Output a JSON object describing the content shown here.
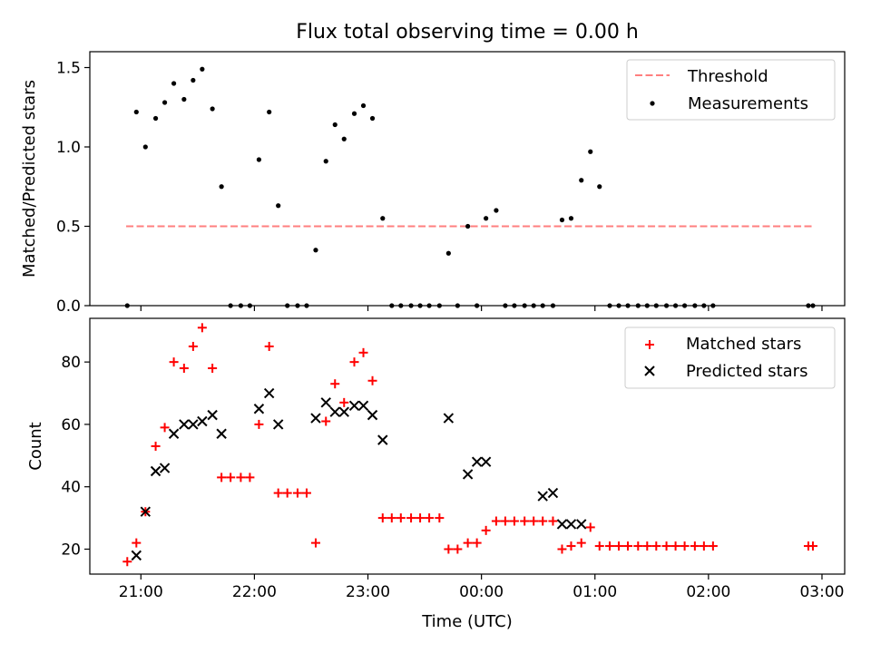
{
  "chart_data": [
    {
      "type": "scatter",
      "title": "Flux total observing time = 0.00 h",
      "xlabel": "",
      "ylabel": "Matched/Predicted stars",
      "xlim": [
        20.55,
        27.2
      ],
      "ylim": [
        0,
        1.6
      ],
      "yticks": [
        0.0,
        0.5,
        1.0,
        1.5
      ],
      "ytick_labels": [
        "0.0",
        "0.5",
        "1.0",
        "1.5"
      ],
      "xticks": [
        21,
        22,
        23,
        24,
        25,
        26,
        27
      ],
      "xtick_labels": [
        "",
        "",
        "",
        "",
        "",
        "",
        ""
      ],
      "grid": false,
      "legend": "top-right",
      "threshold": {
        "name": "Threshold",
        "y": 0.5,
        "x": [
          20.87,
          26.92
        ],
        "color": "#ff7f7f",
        "style": "dashed"
      },
      "series": [
        {
          "name": "Measurements",
          "marker": "dot",
          "color": "#000000",
          "points": [
            [
              20.88,
              0.0
            ],
            [
              20.96,
              1.22
            ],
            [
              21.04,
              1.0
            ],
            [
              21.13,
              1.18
            ],
            [
              21.21,
              1.28
            ],
            [
              21.29,
              1.4
            ],
            [
              21.38,
              1.3
            ],
            [
              21.46,
              1.42
            ],
            [
              21.54,
              1.49
            ],
            [
              21.63,
              1.24
            ],
            [
              21.71,
              0.75
            ],
            [
              21.79,
              0.0
            ],
            [
              21.88,
              0.0
            ],
            [
              21.96,
              0.0
            ],
            [
              22.04,
              0.92
            ],
            [
              22.13,
              1.22
            ],
            [
              22.21,
              0.63
            ],
            [
              22.29,
              0.0
            ],
            [
              22.38,
              0.0
            ],
            [
              22.46,
              0.0
            ],
            [
              22.54,
              0.35
            ],
            [
              22.63,
              0.91
            ],
            [
              22.71,
              1.14
            ],
            [
              22.79,
              1.05
            ],
            [
              22.88,
              1.21
            ],
            [
              22.96,
              1.26
            ],
            [
              23.04,
              1.18
            ],
            [
              23.13,
              0.55
            ],
            [
              23.21,
              0.0
            ],
            [
              23.29,
              0.0
            ],
            [
              23.38,
              0.0
            ],
            [
              23.46,
              0.0
            ],
            [
              23.54,
              0.0
            ],
            [
              23.63,
              0.0
            ],
            [
              23.71,
              0.33
            ],
            [
              23.79,
              0.0
            ],
            [
              23.88,
              0.5
            ],
            [
              23.96,
              0.0
            ],
            [
              24.04,
              0.55
            ],
            [
              24.13,
              0.6
            ],
            [
              24.21,
              0.0
            ],
            [
              24.29,
              0.0
            ],
            [
              24.38,
              0.0
            ],
            [
              24.46,
              0.0
            ],
            [
              24.54,
              0.0
            ],
            [
              24.63,
              0.0
            ],
            [
              24.71,
              0.54
            ],
            [
              24.79,
              0.55
            ],
            [
              24.88,
              0.79
            ],
            [
              24.96,
              0.97
            ],
            [
              25.04,
              0.75
            ],
            [
              25.13,
              0.0
            ],
            [
              25.21,
              0.0
            ],
            [
              25.29,
              0.0
            ],
            [
              25.38,
              0.0
            ],
            [
              25.46,
              0.0
            ],
            [
              25.54,
              0.0
            ],
            [
              25.63,
              0.0
            ],
            [
              25.71,
              0.0
            ],
            [
              25.79,
              0.0
            ],
            [
              25.88,
              0.0
            ],
            [
              25.96,
              0.0
            ],
            [
              26.04,
              0.0
            ],
            [
              26.88,
              0.0
            ],
            [
              26.92,
              0.0
            ]
          ]
        }
      ]
    },
    {
      "type": "scatter",
      "title": "",
      "xlabel": "Time (UTC)",
      "ylabel": "Count",
      "xlim": [
        20.55,
        27.2
      ],
      "ylim": [
        12,
        94
      ],
      "yticks": [
        20,
        40,
        60,
        80
      ],
      "ytick_labels": [
        "20",
        "40",
        "60",
        "80"
      ],
      "xticks": [
        21,
        22,
        23,
        24,
        25,
        26,
        27
      ],
      "xtick_labels": [
        "21:00",
        "22:00",
        "23:00",
        "00:00",
        "01:00",
        "02:00",
        "03:00"
      ],
      "grid": false,
      "legend": "top-right",
      "series": [
        {
          "name": "Matched stars",
          "marker": "plus",
          "color": "#ff0000",
          "points": [
            [
              20.88,
              16
            ],
            [
              20.96,
              22
            ],
            [
              21.04,
              32
            ],
            [
              21.13,
              53
            ],
            [
              21.21,
              59
            ],
            [
              21.29,
              80
            ],
            [
              21.38,
              78
            ],
            [
              21.46,
              85
            ],
            [
              21.54,
              91
            ],
            [
              21.63,
              78
            ],
            [
              21.71,
              43
            ],
            [
              21.79,
              43
            ],
            [
              21.88,
              43
            ],
            [
              21.96,
              43
            ],
            [
              22.04,
              60
            ],
            [
              22.13,
              85
            ],
            [
              22.21,
              38
            ],
            [
              22.29,
              38
            ],
            [
              22.38,
              38
            ],
            [
              22.46,
              38
            ],
            [
              22.54,
              22
            ],
            [
              22.63,
              61
            ],
            [
              22.71,
              73
            ],
            [
              22.79,
              67
            ],
            [
              22.88,
              80
            ],
            [
              22.96,
              83
            ],
            [
              23.04,
              74
            ],
            [
              23.13,
              30
            ],
            [
              23.21,
              30
            ],
            [
              23.29,
              30
            ],
            [
              23.38,
              30
            ],
            [
              23.46,
              30
            ],
            [
              23.54,
              30
            ],
            [
              23.63,
              30
            ],
            [
              23.71,
              20
            ],
            [
              23.79,
              20
            ],
            [
              23.88,
              22
            ],
            [
              23.96,
              22
            ],
            [
              24.04,
              26
            ],
            [
              24.13,
              29
            ],
            [
              24.21,
              29
            ],
            [
              24.29,
              29
            ],
            [
              24.38,
              29
            ],
            [
              24.46,
              29
            ],
            [
              24.54,
              29
            ],
            [
              24.63,
              29
            ],
            [
              24.71,
              20
            ],
            [
              24.79,
              21
            ],
            [
              24.88,
              22
            ],
            [
              24.96,
              27
            ],
            [
              25.04,
              21
            ],
            [
              25.13,
              21
            ],
            [
              25.21,
              21
            ],
            [
              25.29,
              21
            ],
            [
              25.38,
              21
            ],
            [
              25.46,
              21
            ],
            [
              25.54,
              21
            ],
            [
              25.63,
              21
            ],
            [
              25.71,
              21
            ],
            [
              25.79,
              21
            ],
            [
              25.88,
              21
            ],
            [
              25.96,
              21
            ],
            [
              26.04,
              21
            ],
            [
              26.88,
              21
            ],
            [
              26.92,
              21
            ]
          ]
        },
        {
          "name": "Predicted stars",
          "marker": "x",
          "color": "#000000",
          "points": [
            [
              20.96,
              18
            ],
            [
              21.04,
              32
            ],
            [
              21.13,
              45
            ],
            [
              21.21,
              46
            ],
            [
              21.29,
              57
            ],
            [
              21.38,
              60
            ],
            [
              21.46,
              60
            ],
            [
              21.54,
              61
            ],
            [
              21.63,
              63
            ],
            [
              21.71,
              57
            ],
            [
              22.04,
              65
            ],
            [
              22.13,
              70
            ],
            [
              22.21,
              60
            ],
            [
              22.54,
              62
            ],
            [
              22.63,
              67
            ],
            [
              22.71,
              64
            ],
            [
              22.79,
              64
            ],
            [
              22.88,
              66
            ],
            [
              22.96,
              66
            ],
            [
              23.04,
              63
            ],
            [
              23.13,
              55
            ],
            [
              23.71,
              62
            ],
            [
              23.88,
              44
            ],
            [
              23.96,
              48
            ],
            [
              24.04,
              48
            ],
            [
              24.54,
              37
            ],
            [
              24.63,
              38
            ],
            [
              24.71,
              28
            ],
            [
              24.79,
              28
            ],
            [
              24.88,
              28
            ]
          ]
        }
      ]
    }
  ]
}
